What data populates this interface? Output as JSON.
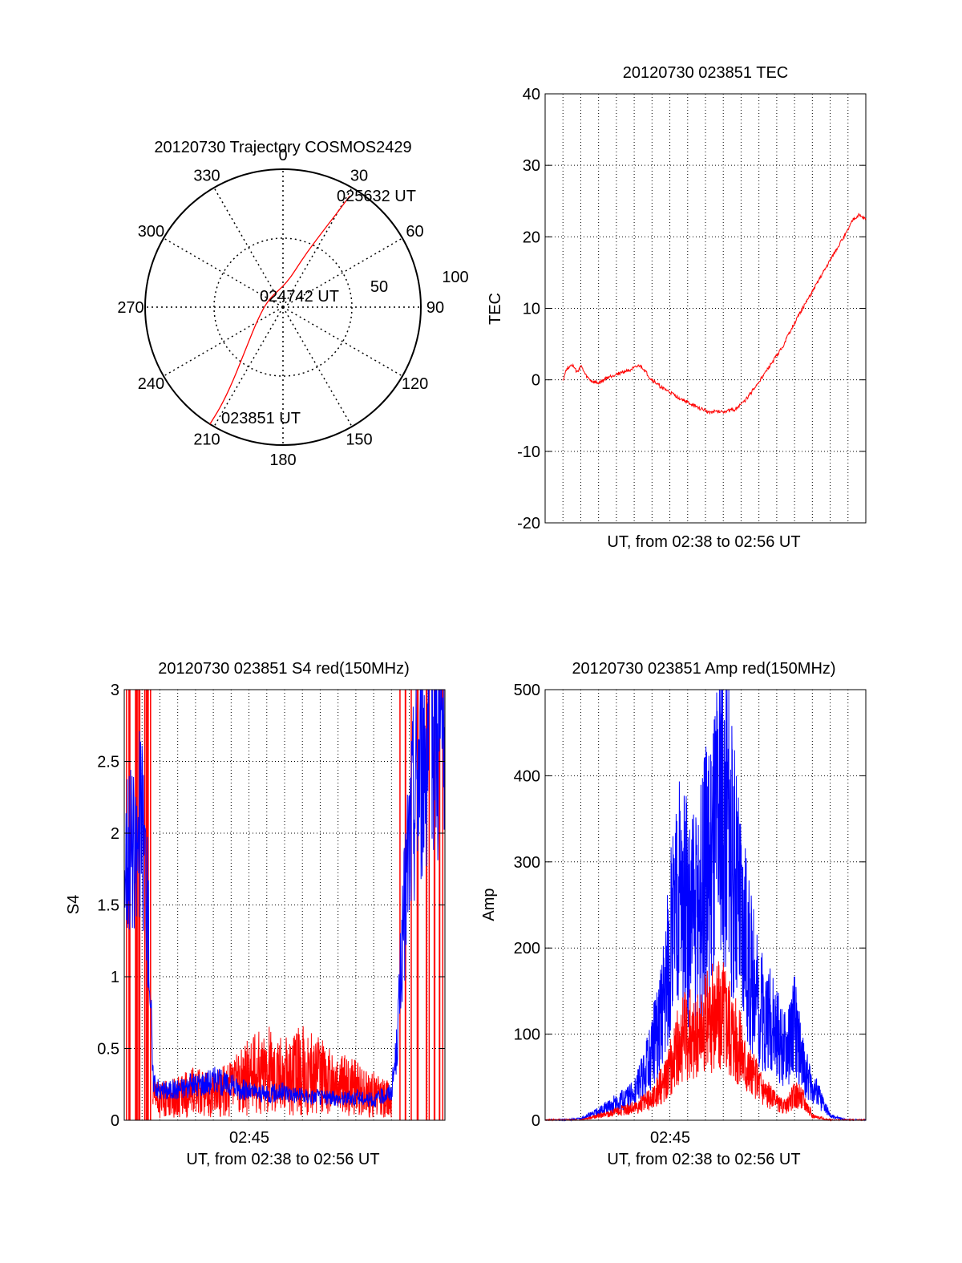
{
  "chart_data": [
    {
      "type": "polar",
      "title": "20120730 Trajectory COSMOS2429",
      "angle_labels": [
        "0",
        "30",
        "60",
        "90",
        "120",
        "150",
        "180",
        "210",
        "240",
        "270",
        "300",
        "330"
      ],
      "radius_labels": [
        "50",
        "100"
      ],
      "radius_range": [
        0,
        100
      ],
      "grid": true,
      "annotations": [
        "025632 UT",
        "024742 UT",
        "023851 UT"
      ],
      "series": [
        {
          "color": "#ff0000",
          "points": [
            {
              "azimuth": 212,
              "elevation": 0
            },
            {
              "azimuth": 212,
              "elevation": 15
            },
            {
              "azimuth": 214,
              "elevation": 35
            },
            {
              "azimuth": 222,
              "elevation": 60
            },
            {
              "azimuth": 245,
              "elevation": 80
            },
            {
              "azimuth": 300,
              "elevation": 88
            },
            {
              "azimuth": 10,
              "elevation": 82
            },
            {
              "azimuth": 22,
              "elevation": 62
            },
            {
              "azimuth": 27,
              "elevation": 42
            },
            {
              "azimuth": 30,
              "elevation": 20
            },
            {
              "azimuth": 31,
              "elevation": 6
            }
          ]
        }
      ]
    },
    {
      "type": "line",
      "title": "20120730 023851 TEC",
      "xlabel": "UT, from 02:38 to 02:56 UT",
      "ylabel": "TEC",
      "ylim": [
        -20,
        40
      ],
      "yticks": [
        "-20",
        "-10",
        "0",
        "10",
        "20",
        "30",
        "40"
      ],
      "xlim_minutes": [
        0,
        18
      ],
      "grid": true,
      "series": [
        {
          "color": "#ff0000",
          "x": [
            1.0,
            1.2,
            1.5,
            1.8,
            2.0,
            2.3,
            2.6,
            3.0,
            3.5,
            4.0,
            4.5,
            5.0,
            5.3,
            5.5,
            5.9,
            6.5,
            7.5,
            8.5,
            9.2,
            10.0,
            10.6,
            11.2,
            11.8,
            12.5,
            13.3,
            14.0,
            14.8,
            15.6,
            16.4,
            16.9,
            17.3,
            17.6,
            18.0
          ],
          "y": [
            0,
            1.5,
            2.2,
            1.0,
            2.0,
            0.5,
            -0.2,
            -0.5,
            0.3,
            0.8,
            1.2,
            1.6,
            2.0,
            1.6,
            0.2,
            -1.0,
            -2.5,
            -3.8,
            -4.5,
            -4.4,
            -4.2,
            -3.0,
            -1.0,
            1.5,
            4.5,
            8.0,
            11.5,
            15.0,
            18.5,
            20.5,
            22.5,
            23.0,
            22.5
          ]
        }
      ]
    },
    {
      "type": "line",
      "title": "20120730 023851 S4 red(150MHz)",
      "xlabel": "UT, from 02:38 to 02:56 UT",
      "ylabel": "S4",
      "ylim": [
        0,
        3
      ],
      "yticks": [
        "0",
        "0.5",
        "1",
        "1.5",
        "2",
        "2.5",
        "3"
      ],
      "xticks": [
        {
          "value": 7,
          "label": "02:45"
        }
      ],
      "xlim_minutes": [
        0,
        18
      ],
      "grid": true,
      "series": [
        {
          "color": "#0000ff",
          "x": [
            0.0,
            0.3,
            0.6,
            0.9,
            1.2,
            1.4,
            1.6,
            2.0,
            3.0,
            4.0,
            5.0,
            6.0,
            7.0,
            8.0,
            9.0,
            10.0,
            11.0,
            12.0,
            13.0,
            14.0,
            15.0,
            15.3,
            15.6,
            15.9,
            16.2,
            16.5,
            16.8,
            17.1,
            17.4,
            17.7,
            18.0
          ],
          "y": [
            1.8,
            2.0,
            1.7,
            2.1,
            1.8,
            1.2,
            0.3,
            0.2,
            0.22,
            0.25,
            0.28,
            0.24,
            0.2,
            0.18,
            0.2,
            0.17,
            0.16,
            0.15,
            0.16,
            0.14,
            0.2,
            0.5,
            1.2,
            1.8,
            2.2,
            2.5,
            2.6,
            2.8,
            2.9,
            2.7,
            2.8
          ]
        },
        {
          "color": "#ff0000",
          "x": [
            1.6,
            2.0,
            3.0,
            4.0,
            5.0,
            6.0,
            7.0,
            8.0,
            9.0,
            10.0,
            11.0,
            12.0,
            13.0,
            14.0,
            15.0
          ],
          "y": [
            0.15,
            0.14,
            0.16,
            0.2,
            0.18,
            0.22,
            0.3,
            0.35,
            0.3,
            0.35,
            0.3,
            0.25,
            0.22,
            0.18,
            0.15
          ]
        }
      ]
    },
    {
      "type": "line",
      "title": "20120730 023851 Amp red(150MHz)",
      "xlabel": "UT, from 02:38 to 02:56 UT",
      "ylabel": "Amp",
      "ylim": [
        0,
        500
      ],
      "yticks": [
        "0",
        "100",
        "200",
        "300",
        "400",
        "500"
      ],
      "xticks": [
        {
          "value": 7,
          "label": "02:45"
        }
      ],
      "xlim_minutes": [
        0,
        18
      ],
      "grid": true,
      "series": [
        {
          "color": "#0000ff",
          "x": [
            0.0,
            1.0,
            2.0,
            3.0,
            4.0,
            5.0,
            5.5,
            6.0,
            6.5,
            7.0,
            7.5,
            8.0,
            8.5,
            9.0,
            9.5,
            10.0,
            10.5,
            11.0,
            11.5,
            12.0,
            12.5,
            13.0,
            13.5,
            14.0,
            14.5,
            15.0,
            16.0,
            17.0,
            18.0
          ],
          "y": [
            0,
            0,
            2,
            10,
            20,
            30,
            50,
            80,
            120,
            200,
            260,
            240,
            230,
            280,
            320,
            380,
            300,
            230,
            180,
            130,
            120,
            100,
            80,
            110,
            60,
            40,
            5,
            0,
            0
          ]
        },
        {
          "color": "#ff0000",
          "x": [
            0.0,
            2.0,
            3.0,
            4.0,
            5.0,
            6.0,
            6.5,
            7.0,
            7.5,
            8.0,
            8.5,
            9.0,
            9.5,
            10.0,
            10.5,
            11.0,
            11.5,
            12.0,
            12.5,
            13.0,
            13.5,
            14.0,
            14.5,
            15.0,
            16.0,
            18.0
          ],
          "y": [
            0,
            0,
            5,
            10,
            15,
            25,
            40,
            60,
            90,
            100,
            95,
            110,
            120,
            130,
            110,
            80,
            55,
            45,
            30,
            20,
            15,
            30,
            25,
            5,
            0,
            0
          ]
        }
      ]
    }
  ]
}
